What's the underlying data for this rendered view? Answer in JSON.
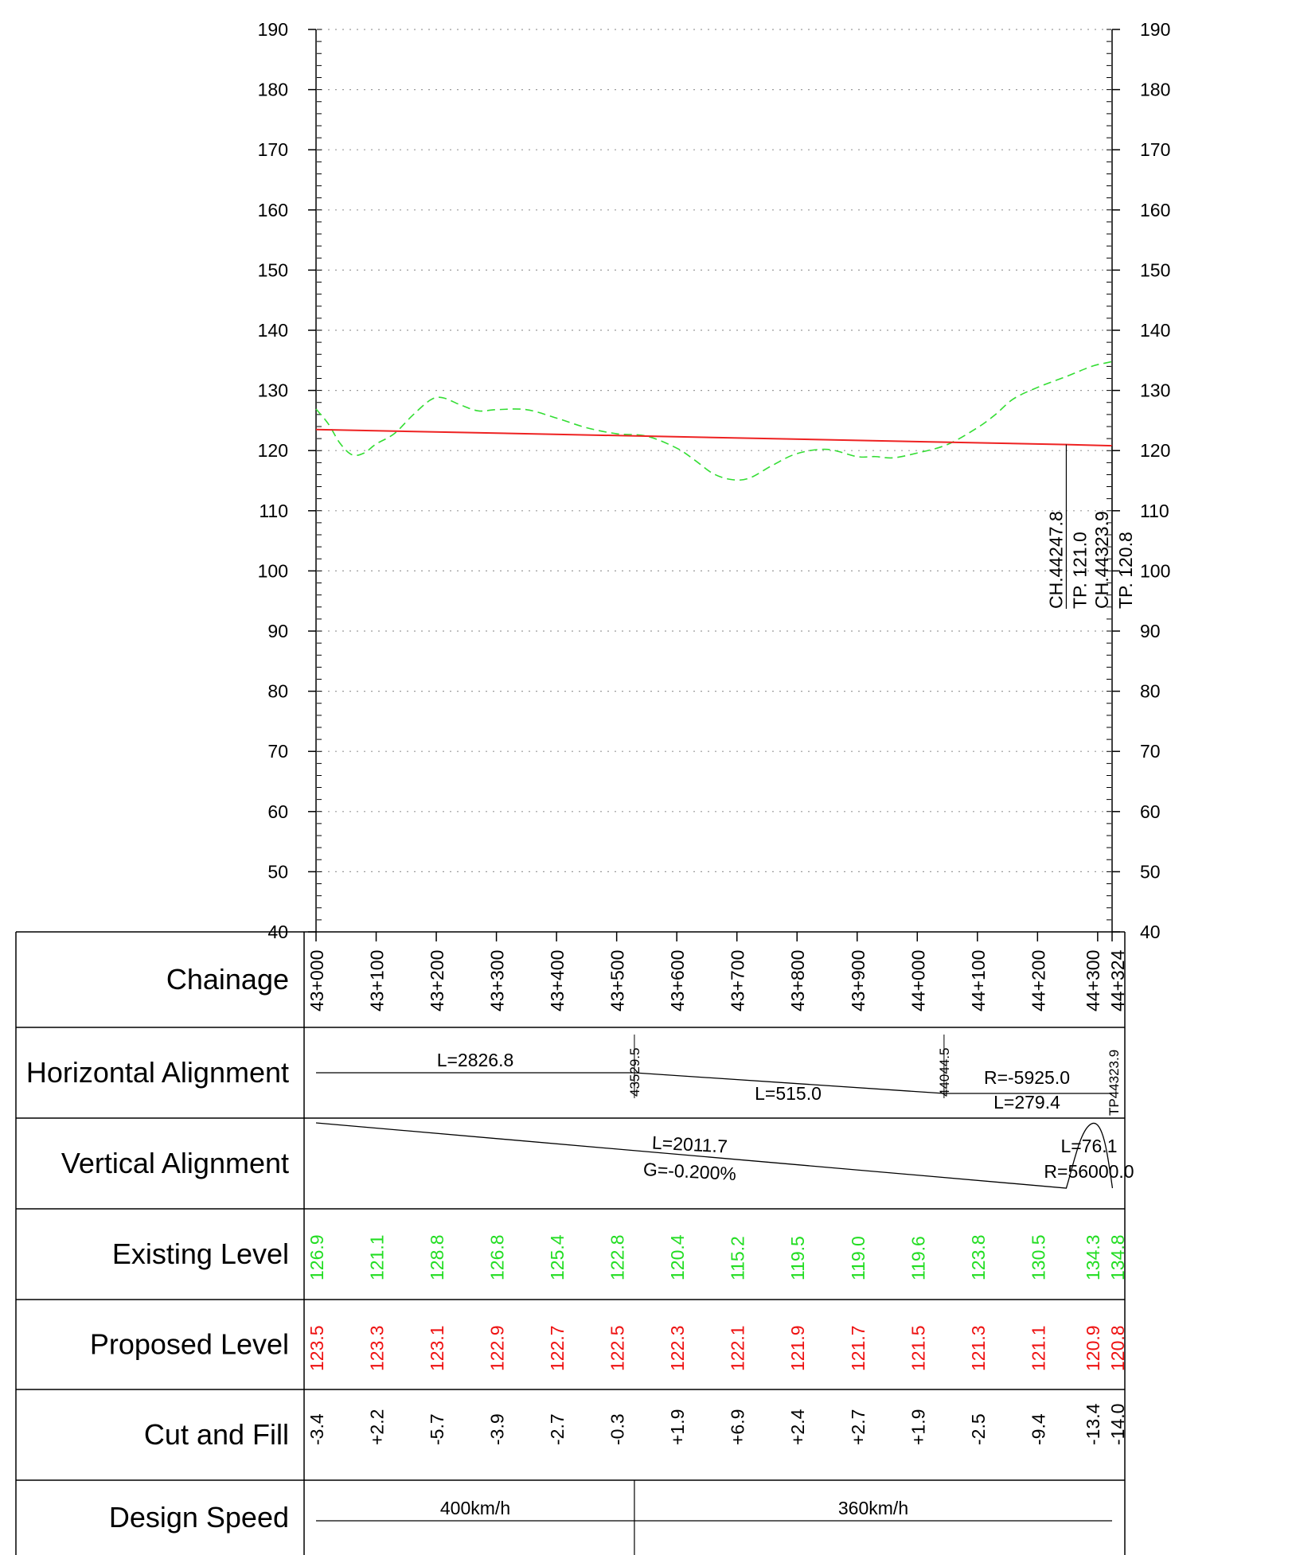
{
  "chart_data": {
    "type": "line",
    "ylim": [
      40,
      190
    ],
    "xlim": [
      43000,
      44324
    ],
    "y_ticks": [
      190,
      180,
      170,
      160,
      150,
      140,
      130,
      120,
      110,
      100,
      90,
      80,
      70,
      60,
      50,
      40
    ],
    "grid": true,
    "series": [
      {
        "role": "existing-ground",
        "color": "#33dd33",
        "dashed": true,
        "points": [
          [
            43000,
            126.9
          ],
          [
            43020,
            124.5
          ],
          [
            43040,
            121.2
          ],
          [
            43060,
            119.3
          ],
          [
            43080,
            119.6
          ],
          [
            43100,
            121.1
          ],
          [
            43130,
            122.8
          ],
          [
            43160,
            125.8
          ],
          [
            43190,
            128.4
          ],
          [
            43210,
            128.8
          ],
          [
            43240,
            127.6
          ],
          [
            43270,
            126.6
          ],
          [
            43300,
            126.8
          ],
          [
            43350,
            126.8
          ],
          [
            43400,
            125.4
          ],
          [
            43450,
            123.8
          ],
          [
            43500,
            122.8
          ],
          [
            43550,
            122.4
          ],
          [
            43600,
            120.4
          ],
          [
            43630,
            118.4
          ],
          [
            43660,
            116.2
          ],
          [
            43690,
            115.2
          ],
          [
            43720,
            115.4
          ],
          [
            43760,
            117.6
          ],
          [
            43800,
            119.5
          ],
          [
            43850,
            120.2
          ],
          [
            43900,
            119.0
          ],
          [
            43930,
            119.0
          ],
          [
            43960,
            118.8
          ],
          [
            44000,
            119.6
          ],
          [
            44050,
            121.0
          ],
          [
            44100,
            123.8
          ],
          [
            44130,
            126.0
          ],
          [
            44160,
            128.6
          ],
          [
            44200,
            130.5
          ],
          [
            44250,
            132.4
          ],
          [
            44290,
            134.0
          ],
          [
            44315,
            134.6
          ],
          [
            44324,
            134.8
          ]
        ]
      },
      {
        "role": "proposed-level",
        "color": "#ee2222",
        "dashed": false,
        "points": [
          [
            43000,
            123.5
          ],
          [
            44247.8,
            121.0
          ],
          [
            44324,
            120.8
          ]
        ]
      }
    ],
    "annotations": [
      {
        "chainage": 44247.8,
        "lines": [
          "CH.44247.8",
          "TP. 121.0"
        ]
      },
      {
        "chainage": 44323.9,
        "lines": [
          "CH.44323.9",
          "TP. 120.8"
        ]
      }
    ],
    "rows": {
      "chainage": {
        "title": "Chainage",
        "labels": [
          "43+000",
          "43+100",
          "43+200",
          "43+300",
          "43+400",
          "43+500",
          "43+600",
          "43+700",
          "43+800",
          "43+900",
          "44+000",
          "44+100",
          "44+200",
          "44+300",
          "44+324"
        ]
      },
      "horizontal_alignment": {
        "title": "Horizontal Alignment",
        "labels": [
          "L=2826.8",
          "43529.5",
          "L=515.0",
          "44044.5",
          "R=-5925.0",
          "L=279.4",
          "TP44323.9"
        ]
      },
      "vertical_alignment": {
        "title": "Vertical Alignment",
        "labels": [
          "L=2011.7",
          "G=-0.200%",
          "L=76.1",
          "R=56000.0"
        ]
      },
      "existing_level": {
        "title": "Existing Level",
        "color": "#22dd22",
        "values": [
          "126.9",
          "121.1",
          "128.8",
          "126.8",
          "125.4",
          "122.8",
          "120.4",
          "115.2",
          "119.5",
          "119.0",
          "119.6",
          "123.8",
          "130.5",
          "134.3",
          "134.8"
        ]
      },
      "proposed_level": {
        "title": "Proposed Level",
        "color": "#ee1111",
        "values": [
          "123.5",
          "123.3",
          "123.1",
          "122.9",
          "122.7",
          "122.5",
          "122.3",
          "122.1",
          "121.9",
          "121.7",
          "121.5",
          "121.3",
          "121.1",
          "120.9",
          "120.8"
        ]
      },
      "cut_and_fill": {
        "title": "Cut and Fill",
        "values": [
          "-3.4",
          "+2.2",
          "-5.7",
          "-3.9",
          "-2.7",
          "-0.3",
          "+1.9",
          "+6.9",
          "+2.4",
          "+2.7",
          "+1.9",
          "-2.5",
          "-9.4",
          "-13.4",
          "-14.0"
        ]
      },
      "design_speed": {
        "title": "Design Speed",
        "labels": [
          "400km/h",
          "360km/h"
        ]
      }
    }
  }
}
